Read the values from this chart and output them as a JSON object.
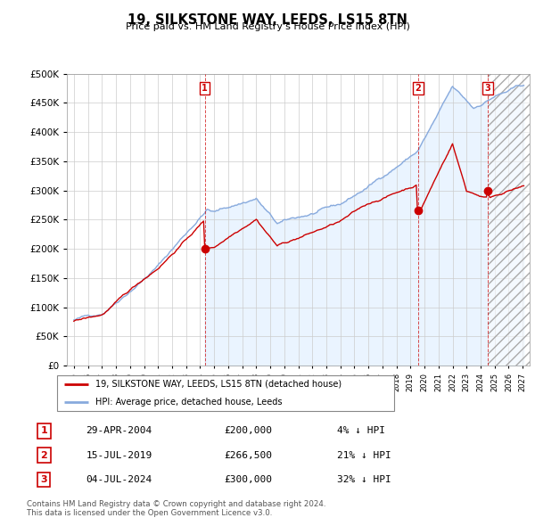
{
  "title": "19, SILKSTONE WAY, LEEDS, LS15 8TN",
  "subtitle": "Price paid vs. HM Land Registry's House Price Index (HPI)",
  "ytick_values": [
    0,
    50000,
    100000,
    150000,
    200000,
    250000,
    300000,
    350000,
    400000,
    450000,
    500000
  ],
  "xlim": [
    1994.5,
    2027.5
  ],
  "ylim": [
    0,
    500000
  ],
  "sale_points": [
    {
      "num": 1,
      "date": "29-APR-2004",
      "price": 200000,
      "x": 2004.33,
      "pct": "4%"
    },
    {
      "num": 2,
      "date": "15-JUL-2019",
      "price": 266500,
      "x": 2019.54,
      "pct": "21%"
    },
    {
      "num": 3,
      "date": "04-JUL-2024",
      "price": 300000,
      "x": 2024.5,
      "pct": "32%"
    }
  ],
  "legend_property": "19, SILKSTONE WAY, LEEDS, LS15 8TN (detached house)",
  "legend_hpi": "HPI: Average price, detached house, Leeds",
  "footer1": "Contains HM Land Registry data © Crown copyright and database right 2024.",
  "footer2": "This data is licensed under the Open Government Licence v3.0.",
  "line_color_property": "#cc0000",
  "line_color_hpi": "#88aadd",
  "fill_color_hpi": "#ddeeff",
  "background_color": "#ffffff",
  "grid_color": "#cccccc"
}
